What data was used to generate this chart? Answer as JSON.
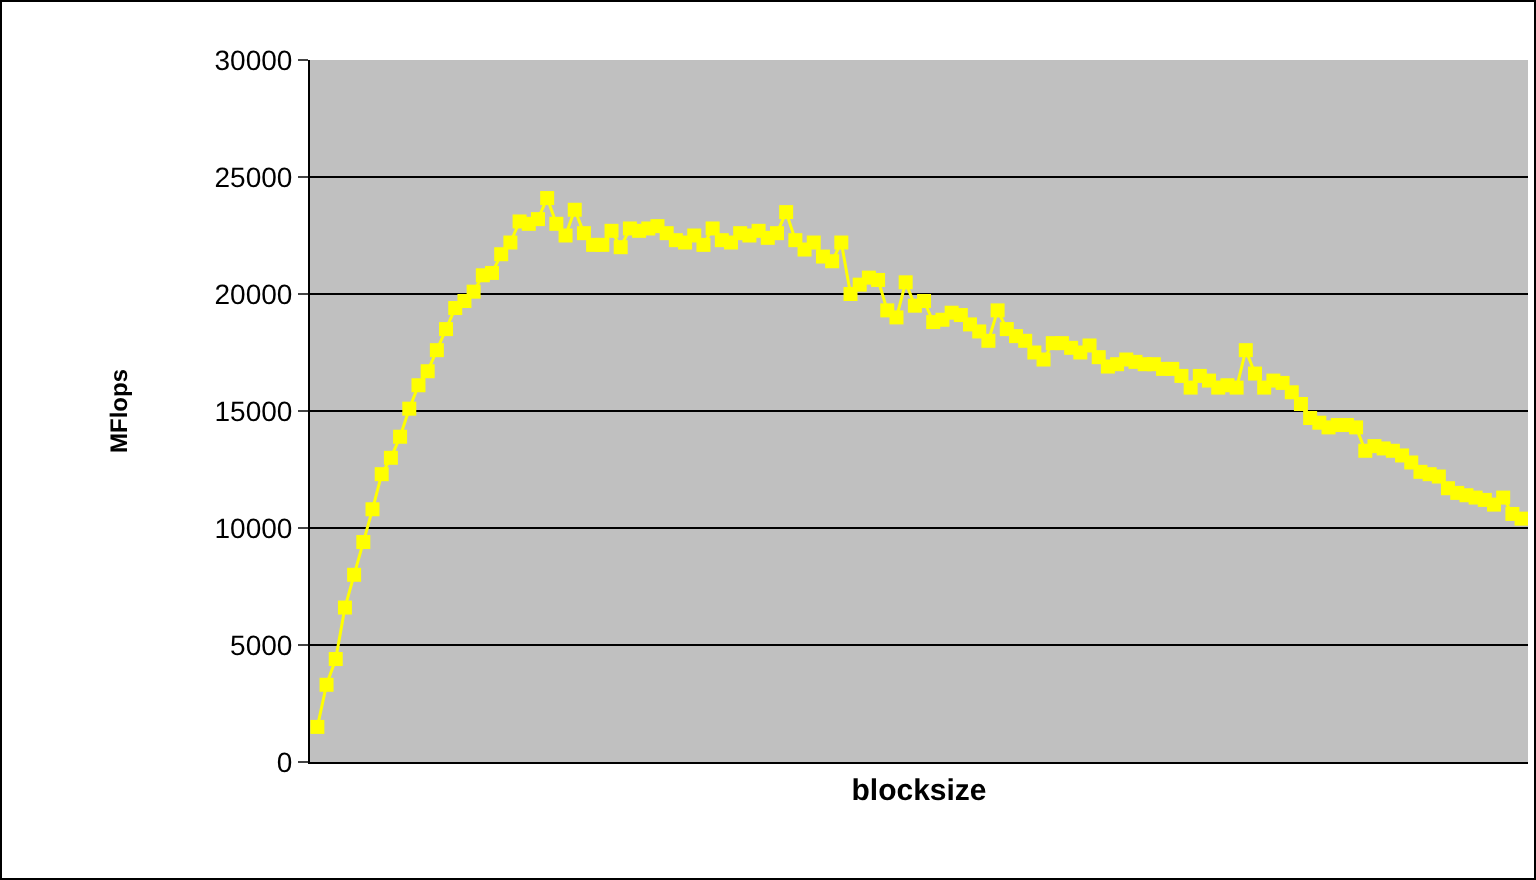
{
  "chart_data": {
    "type": "line",
    "xlabel": "blocksize",
    "ylabel": "MFlops",
    "categories": [
      null,
      null,
      null,
      null,
      null,
      null,
      null,
      null,
      null,
      null,
      null,
      null,
      null,
      null,
      null,
      null,
      null,
      null,
      null,
      null,
      null,
      null,
      null,
      null,
      null,
      null,
      null,
      null,
      null,
      null,
      null,
      null,
      null,
      null,
      null,
      null,
      null,
      null,
      null,
      null,
      null,
      null,
      null,
      null,
      null,
      null,
      null,
      null,
      null,
      null,
      null,
      null,
      null,
      null,
      null,
      null,
      null,
      null,
      null,
      null,
      null,
      null,
      null,
      null,
      null,
      null,
      null,
      null,
      null,
      null,
      null,
      null,
      null,
      null,
      null,
      null,
      null,
      null,
      null,
      null,
      null,
      null,
      null,
      null,
      null,
      null,
      null,
      null,
      null,
      null,
      null,
      null,
      null,
      null,
      null,
      null,
      null,
      null,
      null,
      null,
      null,
      null,
      null,
      null,
      null,
      null,
      null,
      null,
      null,
      null,
      null,
      null,
      null,
      null,
      null,
      null,
      null,
      null,
      null,
      null,
      null,
      null,
      null,
      null,
      null,
      null,
      null,
      null,
      null,
      null,
      null,
      null
    ],
    "series": [
      {
        "color": "#ffff00",
        "values": [
          1500,
          3300,
          4400,
          6600,
          8000,
          9400,
          10800,
          12300,
          13000,
          13900,
          15100,
          16100,
          16700,
          17600,
          18500,
          19400,
          19700,
          20100,
          20800,
          20900,
          21700,
          22200,
          23100,
          23000,
          23200,
          24100,
          23000,
          22500,
          23600,
          22600,
          22100,
          22100,
          22700,
          22000,
          22800,
          22700,
          22800,
          22900,
          22600,
          22300,
          22200,
          22500,
          22100,
          22800,
          22300,
          22200,
          22600,
          22500,
          22700,
          22400,
          22600,
          23500,
          22300,
          21900,
          22200,
          21600,
          21400,
          22200,
          20000,
          20400,
          20700,
          20600,
          19300,
          19000,
          20500,
          19500,
          19700,
          18800,
          18900,
          19200,
          19100,
          18700,
          18400,
          18000,
          19300,
          18500,
          18200,
          18000,
          17500,
          17200,
          17900,
          17900,
          17700,
          17500,
          17800,
          17300,
          16900,
          17000,
          17200,
          17100,
          17000,
          17000,
          16800,
          16800,
          16500,
          16000,
          16500,
          16300,
          16000,
          16100,
          16000,
          17600,
          16600,
          16000,
          16300,
          16200,
          15800,
          15300,
          14700,
          14500,
          14300,
          14400,
          14400,
          14300,
          13300,
          13500,
          13400,
          13300,
          13100,
          12800,
          12400,
          12300,
          12200,
          11700,
          11500,
          11400,
          11300,
          11200,
          11000,
          11300,
          10600,
          10400
        ]
      }
    ],
    "ylim": [
      0,
      30000
    ],
    "yticks": [
      0,
      5000,
      10000,
      15000,
      20000,
      25000,
      30000
    ],
    "grid": "y",
    "marker": "square",
    "line_style": "solid",
    "tick_labels": "y"
  }
}
